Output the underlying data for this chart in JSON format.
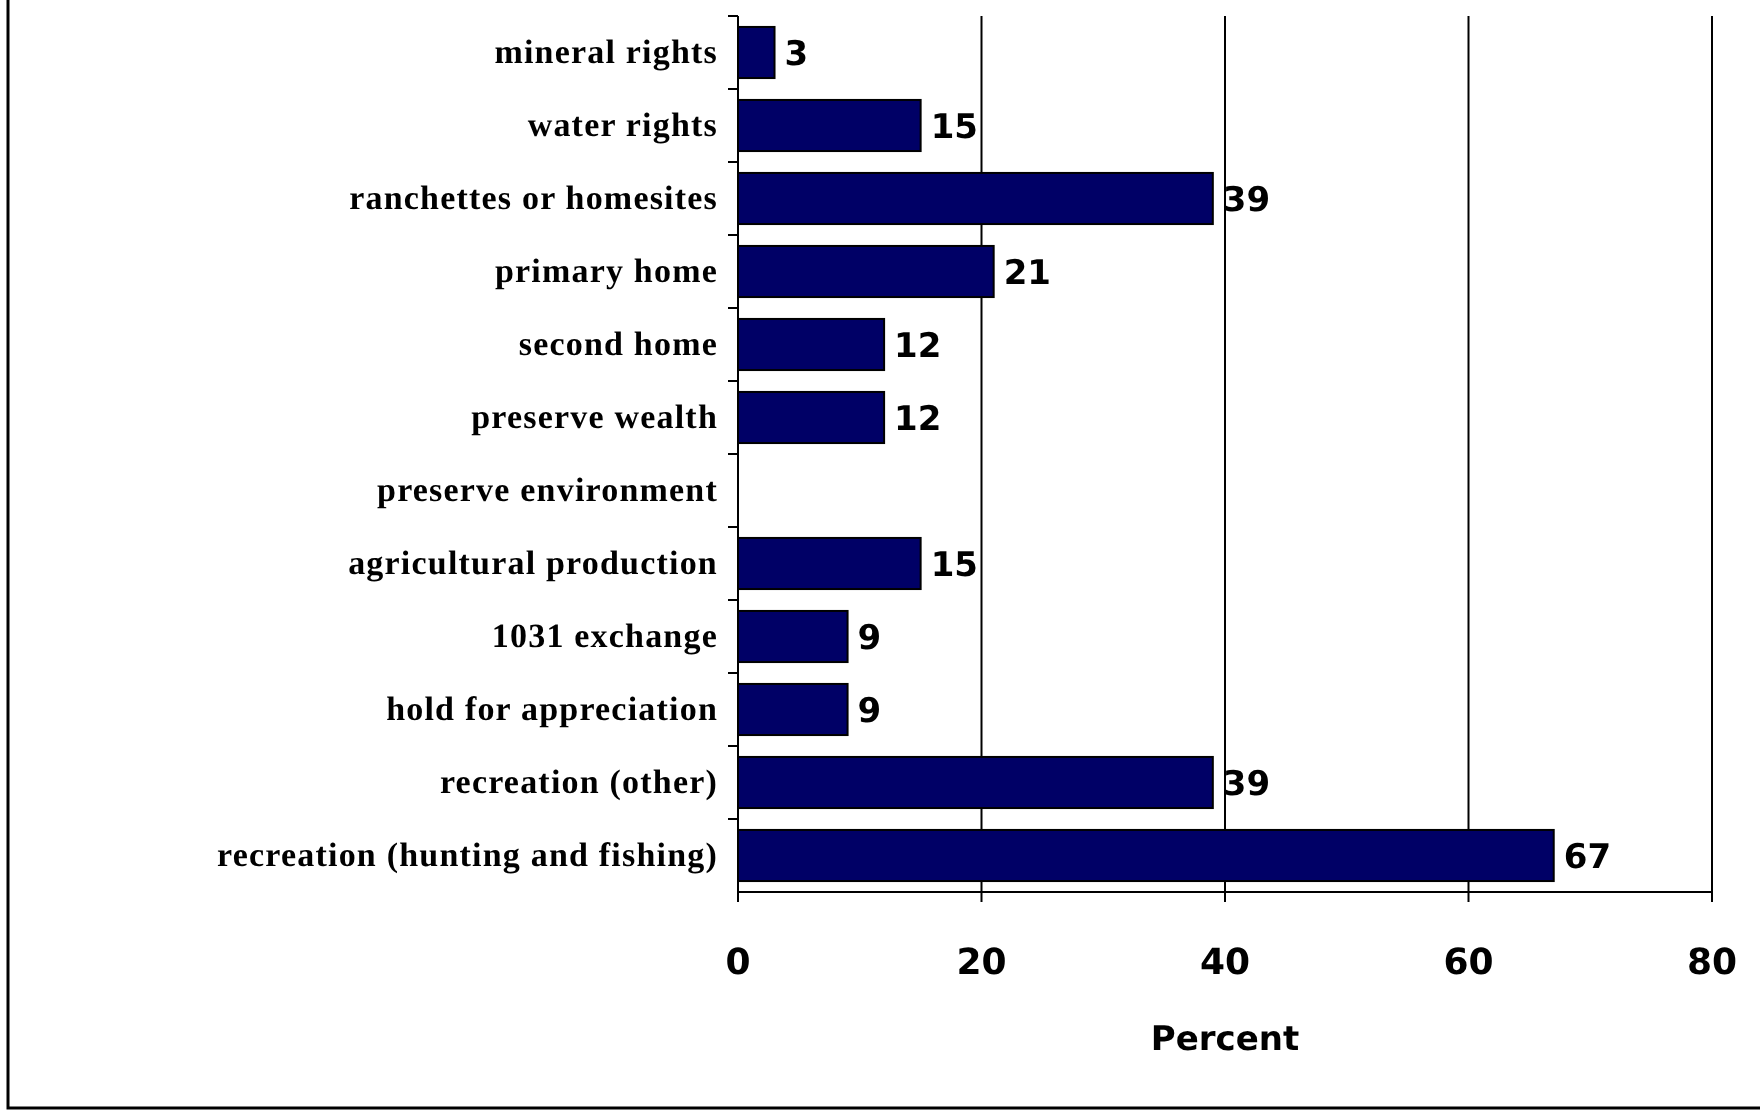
{
  "chart_data": {
    "type": "bar",
    "orientation": "horizontal",
    "xlabel": "Percent",
    "categories": [
      "mineral rights",
      "water rights",
      "ranchettes or homesites",
      "primary home",
      "second home",
      "preserve wealth",
      "preserve environment",
      "agricultural production",
      "1031 exchange",
      "hold for appreciation",
      "recreation (other)",
      "recreation (hunting and fishing)"
    ],
    "values": [
      3,
      15,
      39,
      21,
      12,
      12,
      null,
      15,
      9,
      9,
      39,
      67
    ],
    "color": "#000066",
    "xlim": [
      0,
      80
    ],
    "xticks": [
      0,
      20,
      40,
      60,
      80
    ],
    "grid": "x",
    "data_labels": true
  }
}
